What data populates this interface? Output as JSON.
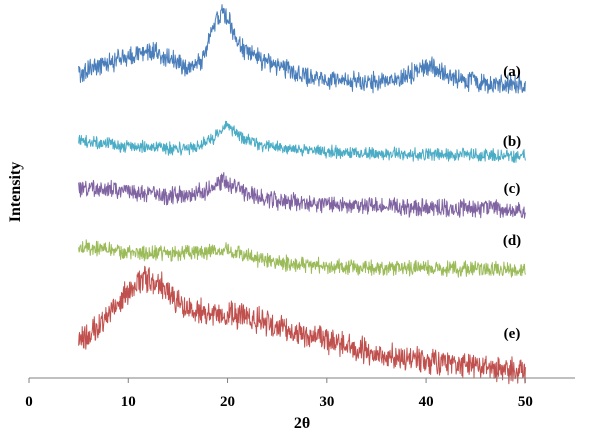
{
  "chart_data": {
    "type": "line",
    "title": "",
    "xlabel": "2θ",
    "ylabel": "Intensity",
    "xlim": [
      0,
      55
    ],
    "xticks": [
      "0",
      "10",
      "20",
      "30",
      "40",
      "50"
    ],
    "x_range_of_data": [
      5,
      50
    ],
    "grid": false,
    "legend": "none",
    "y_axis_shown": false,
    "series": [
      {
        "name": "(a)",
        "color": "#4A7EBB",
        "points": [
          [
            5,
            0.45
          ],
          [
            8,
            0.55
          ],
          [
            10,
            0.6
          ],
          [
            12,
            0.65
          ],
          [
            14,
            0.58
          ],
          [
            16,
            0.5
          ],
          [
            17.5,
            0.58
          ],
          [
            18.5,
            0.85
          ],
          [
            19.5,
            1.0
          ],
          [
            20.2,
            0.9
          ],
          [
            21,
            0.72
          ],
          [
            22.5,
            0.6
          ],
          [
            25,
            0.52
          ],
          [
            28,
            0.42
          ],
          [
            32,
            0.38
          ],
          [
            36,
            0.38
          ],
          [
            39,
            0.45
          ],
          [
            40.5,
            0.52
          ],
          [
            41.5,
            0.48
          ],
          [
            43,
            0.4
          ],
          [
            46,
            0.36
          ],
          [
            50,
            0.35
          ]
        ]
      },
      {
        "name": "(b)",
        "color": "#4BACC6",
        "points": [
          [
            5,
            0.5
          ],
          [
            8,
            0.45
          ],
          [
            12,
            0.42
          ],
          [
            16,
            0.4
          ],
          [
            18.5,
            0.5
          ],
          [
            20,
            0.68
          ],
          [
            21,
            0.55
          ],
          [
            23,
            0.45
          ],
          [
            26,
            0.4
          ],
          [
            30,
            0.37
          ],
          [
            35,
            0.35
          ],
          [
            40,
            0.34
          ],
          [
            45,
            0.33
          ],
          [
            50,
            0.32
          ]
        ]
      },
      {
        "name": "(c)",
        "color": "#8064A2",
        "points": [
          [
            5,
            0.62
          ],
          [
            8,
            0.6
          ],
          [
            12,
            0.55
          ],
          [
            15,
            0.52
          ],
          [
            18,
            0.58
          ],
          [
            19.5,
            0.72
          ],
          [
            21,
            0.6
          ],
          [
            23,
            0.5
          ],
          [
            26,
            0.45
          ],
          [
            30,
            0.42
          ],
          [
            35,
            0.4
          ],
          [
            40,
            0.38
          ],
          [
            45,
            0.37
          ],
          [
            50,
            0.36
          ]
        ]
      },
      {
        "name": "(d)",
        "color": "#9BBB59",
        "points": [
          [
            5,
            0.6
          ],
          [
            8,
            0.56
          ],
          [
            12,
            0.52
          ],
          [
            16,
            0.52
          ],
          [
            19,
            0.55
          ],
          [
            20.5,
            0.55
          ],
          [
            23,
            0.45
          ],
          [
            26,
            0.4
          ],
          [
            30,
            0.36
          ],
          [
            35,
            0.34
          ],
          [
            40,
            0.33
          ],
          [
            45,
            0.32
          ],
          [
            50,
            0.31
          ]
        ]
      },
      {
        "name": "(e)",
        "color": "#C0504D",
        "points": [
          [
            5,
            0.35
          ],
          [
            7,
            0.5
          ],
          [
            9,
            0.72
          ],
          [
            11,
            0.88
          ],
          [
            12,
            0.92
          ],
          [
            13.5,
            0.85
          ],
          [
            15,
            0.7
          ],
          [
            17,
            0.62
          ],
          [
            20,
            0.6
          ],
          [
            23,
            0.55
          ],
          [
            26,
            0.45
          ],
          [
            30,
            0.35
          ],
          [
            35,
            0.25
          ],
          [
            40,
            0.18
          ],
          [
            45,
            0.12
          ],
          [
            50,
            0.08
          ]
        ]
      }
    ]
  }
}
